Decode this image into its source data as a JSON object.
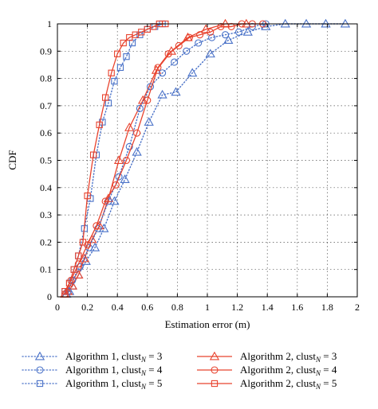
{
  "chart_data": {
    "type": "line",
    "xlabel": "Estimation error (m)",
    "ylabel": "CDF",
    "xlim": [
      0,
      2
    ],
    "ylim": [
      0,
      1
    ],
    "xticks": [
      "0",
      "0.2",
      "0.4",
      "0.6",
      "0.8",
      "1",
      "1.2",
      "1.4",
      "1.6",
      "1.8",
      "2"
    ],
    "yticks": [
      "0",
      "0.1",
      "0.2",
      "0.3",
      "0.4",
      "0.5",
      "0.6",
      "0.7",
      "0.8",
      "0.9",
      "1"
    ],
    "grid": true,
    "legend_position": "bottom",
    "series": [
      {
        "label_main": "Algorithm 1, clust",
        "label_sub": "N",
        "label_tail": " = 3",
        "color": "#4a72c8",
        "line": "dotted",
        "marker": "triangle",
        "x": [
          0.06,
          0.08,
          0.1,
          0.14,
          0.19,
          0.25,
          0.31,
          0.38,
          0.45,
          0.53,
          0.61,
          0.7,
          0.79,
          0.9,
          1.02,
          1.14,
          1.27,
          1.39,
          1.52,
          1.66,
          1.79,
          1.92
        ],
        "y": [
          0.01,
          0.02,
          0.04,
          0.08,
          0.13,
          0.18,
          0.25,
          0.35,
          0.43,
          0.53,
          0.64,
          0.74,
          0.75,
          0.82,
          0.89,
          0.94,
          0.97,
          0.99,
          1.0,
          1.0,
          1.0,
          1.0
        ]
      },
      {
        "label_main": "Algorithm 2, clust",
        "label_sub": "N",
        "label_tail": " = 3",
        "color": "#e8432e",
        "line": "solid",
        "marker": "triangle",
        "x": [
          0.05,
          0.07,
          0.1,
          0.14,
          0.18,
          0.23,
          0.28,
          0.34,
          0.41,
          0.48,
          0.57,
          0.66,
          0.76,
          0.87,
          0.99,
          1.12,
          1.26
        ],
        "y": [
          0.01,
          0.02,
          0.04,
          0.08,
          0.14,
          0.21,
          0.26,
          0.36,
          0.5,
          0.62,
          0.72,
          0.83,
          0.9,
          0.95,
          0.98,
          1.0,
          1.0
        ]
      },
      {
        "label_main": "Algorithm 1, clust",
        "label_sub": "N",
        "label_tail": " = 4",
        "color": "#4a72c8",
        "line": "dotted",
        "marker": "circle",
        "x": [
          0.07,
          0.1,
          0.15,
          0.21,
          0.27,
          0.34,
          0.41,
          0.48,
          0.55,
          0.62,
          0.7,
          0.78,
          0.86,
          0.94,
          1.03,
          1.12,
          1.21,
          1.3,
          1.39
        ],
        "y": [
          0.02,
          0.06,
          0.11,
          0.18,
          0.25,
          0.35,
          0.44,
          0.55,
          0.69,
          0.77,
          0.82,
          0.86,
          0.9,
          0.93,
          0.95,
          0.96,
          0.97,
          0.99,
          1.0
        ]
      },
      {
        "label_main": "Algorithm 2, clust",
        "label_sub": "N",
        "label_tail": " = 4",
        "color": "#e8432e",
        "line": "solid",
        "marker": "circle",
        "x": [
          0.05,
          0.09,
          0.14,
          0.2,
          0.26,
          0.32,
          0.39,
          0.46,
          0.53,
          0.6,
          0.67,
          0.74,
          0.81,
          0.88,
          0.95,
          1.02,
          1.09,
          1.16,
          1.23,
          1.3,
          1.37
        ],
        "y": [
          0.01,
          0.06,
          0.12,
          0.19,
          0.26,
          0.35,
          0.41,
          0.5,
          0.6,
          0.72,
          0.84,
          0.89,
          0.92,
          0.95,
          0.96,
          0.97,
          0.99,
          0.99,
          1.0,
          1.0,
          1.0
        ]
      },
      {
        "label_main": "Algorithm 1, clust",
        "label_sub": "N",
        "label_tail": " = 5",
        "color": "#4a72c8",
        "line": "dotted",
        "marker": "square",
        "x": [
          0.05,
          0.08,
          0.11,
          0.14,
          0.18,
          0.22,
          0.26,
          0.3,
          0.34,
          0.38,
          0.42,
          0.46,
          0.5,
          0.55,
          0.6,
          0.65,
          0.7
        ],
        "y": [
          0.02,
          0.05,
          0.1,
          0.15,
          0.25,
          0.36,
          0.52,
          0.64,
          0.71,
          0.79,
          0.84,
          0.88,
          0.93,
          0.96,
          0.98,
          0.99,
          1.0
        ]
      },
      {
        "label_main": "Algorithm 2, clust",
        "label_sub": "N",
        "label_tail": " = 5",
        "color": "#e8432e",
        "line": "solid",
        "marker": "square",
        "x": [
          0.05,
          0.08,
          0.11,
          0.14,
          0.17,
          0.2,
          0.24,
          0.28,
          0.32,
          0.36,
          0.4,
          0.44,
          0.48,
          0.52,
          0.56,
          0.6,
          0.64,
          0.68,
          0.72
        ],
        "y": [
          0.02,
          0.05,
          0.1,
          0.15,
          0.2,
          0.37,
          0.52,
          0.63,
          0.73,
          0.82,
          0.89,
          0.93,
          0.95,
          0.96,
          0.97,
          0.98,
          0.99,
          1.0,
          1.0
        ]
      }
    ]
  }
}
